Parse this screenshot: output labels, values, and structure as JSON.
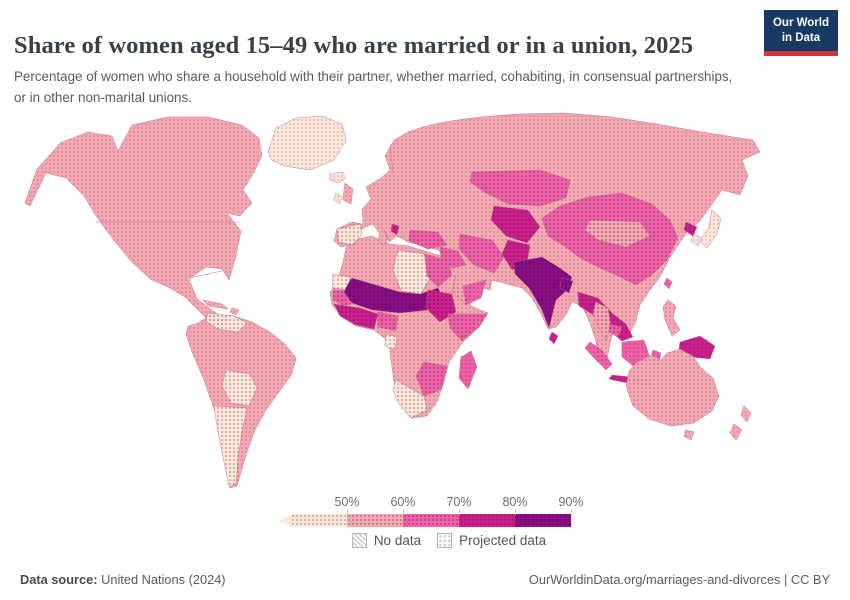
{
  "header": {
    "title": "Share of women aged 15–49 who are married or in a union, 2025",
    "subtitle": "Percentage of women who share a household with their partner, whether married, cohabiting, in consensual partnerships, or in other non-marital unions.",
    "logo": {
      "line1": "Our World",
      "line2": "in Data",
      "bg_color": "#183962",
      "accent_color": "#d1353c"
    }
  },
  "legend": {
    "tick_labels": [
      "50%",
      "60%",
      "70%",
      "80%",
      "90%"
    ],
    "no_data_label": "No data",
    "projected_label": "Projected data"
  },
  "footer": {
    "datasource_prefix": "Data source:",
    "datasource": " United Nations (2024)",
    "right": "OurWorldinData.org/marriages-and-divorces | CC BY"
  },
  "chart_data": {
    "type": "heatmap",
    "subtype": "choropleth-world-map",
    "title": "Share of women aged 15–49 who are married or in a union, 2025",
    "unit": "% of women aged 15–49 married or in a union",
    "year": 2025,
    "projected": true,
    "legend_position": "bottom-center",
    "bins": [
      {
        "label": "<50%",
        "color": "#fae7d9"
      },
      {
        "label": "50–60%",
        "color": "#f3a8b2"
      },
      {
        "label": "60–70%",
        "color": "#ed62a6"
      },
      {
        "label": "70–80%",
        "color": "#c9208c"
      },
      {
        "label": "80–90%",
        "color": "#870e83"
      }
    ],
    "region_bins": {
      "greenland": 0,
      "iceland": 0,
      "north-america": 1,
      "cuba": 1,
      "hispaniola": 1,
      "south-america": 1,
      "venezuela": 0,
      "bolivia-paraguay": 0,
      "argentina-chile": 0,
      "africa": 1,
      "western-sahara": 0,
      "libya": 0,
      "egypt": 2,
      "mauritania": 2,
      "sahel": 4,
      "west-africa": 3,
      "nigeria": 2,
      "sudan": 3,
      "horn-of-africa": 2,
      "gabon": 0,
      "southeast-africa": 2,
      "southern-africa": 0,
      "madagascar": 2,
      "eurasia": 1,
      "iberia": 0,
      "uk": 1,
      "ireland": 0,
      "balkans": 3,
      "turkey": 2,
      "levant-iraq": 2,
      "iran": 2,
      "yemen-oman": 2,
      "central-asia": 3,
      "kazakhstan": 2,
      "pakistan": 3,
      "india": 4,
      "bangladesh": 4,
      "china": 2,
      "mongolia": 1,
      "mainland-southeast-asia": 3,
      "thailand": 1,
      "cambodia": 2,
      "north-korea": 3,
      "south-korea": 0,
      "japan": 0,
      "taiwan": 2,
      "philippines": 1,
      "sri-lanka": 3,
      "sumatra": 2,
      "borneo": 2,
      "java": 3,
      "sulawesi": 2,
      "new-guinea": 3,
      "australia": 1,
      "tasmania": 1,
      "new-zealand-north": 1,
      "new-zealand-south": 1
    }
  }
}
